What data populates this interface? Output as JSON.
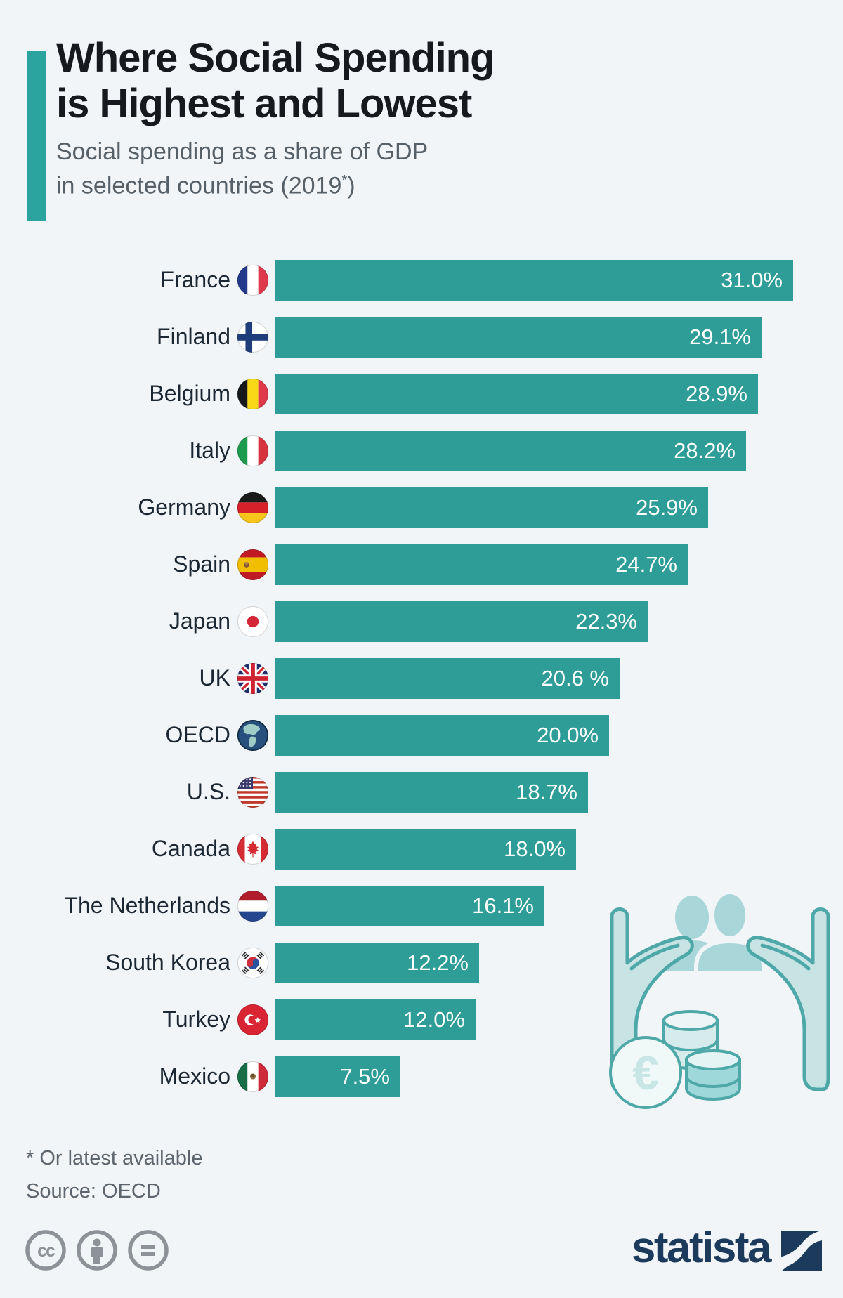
{
  "header": {
    "title_line1": "Where Social Spending",
    "title_line2": "is Highest and Lowest",
    "subtitle_line1": "Social spending as a share of GDP",
    "subtitle_line2_prefix": "in selected countries (2019",
    "subtitle_line2_sup": "*",
    "subtitle_line2_suffix": ")"
  },
  "chart_data": {
    "type": "bar",
    "orientation": "horizontal",
    "unit": "% of GDP",
    "title": "Social spending as a share of GDP in selected countries (2019)",
    "max_value": 31.0,
    "categories": [
      "France",
      "Finland",
      "Belgium",
      "Italy",
      "Germany",
      "Spain",
      "Japan",
      "UK",
      "OECD",
      "U.S.",
      "Canada",
      "The Netherlands",
      "South Korea",
      "Turkey",
      "Mexico"
    ],
    "values": [
      31.0,
      29.1,
      28.9,
      28.2,
      25.9,
      24.7,
      22.3,
      20.6,
      20.0,
      18.7,
      18.0,
      16.1,
      12.2,
      12.0,
      7.5
    ],
    "value_labels": [
      "31.0%",
      "29.1%",
      "28.9%",
      "28.2%",
      "25.9%",
      "24.7%",
      "22.3%",
      "20.6 %",
      "20.0%",
      "18.7%",
      "18.0%",
      "16.1%",
      "12.2%",
      "12.0%",
      "7.5%"
    ],
    "flags": [
      "france",
      "finland",
      "belgium",
      "italy",
      "germany",
      "spain",
      "japan",
      "uk",
      "oecd",
      "us",
      "canada",
      "netherlands",
      "southkorea",
      "turkey",
      "mexico"
    ],
    "legend": null,
    "grid": false
  },
  "footnote": {
    "line1": "* Or latest available",
    "line2": "Source: OECD"
  },
  "branding": {
    "logo_text": "statista",
    "license_icons": [
      "cc-icon",
      "attribution-person-icon",
      "no-derivatives-equals-icon"
    ]
  },
  "colors": {
    "background": "#F1F5F8",
    "accent": "#2BA39F",
    "bar": "#2E9C97",
    "title": "#16191D",
    "subtitle": "#566069",
    "label": "#1B2733",
    "value": "#FFFFFF",
    "footnote": "#5D666E",
    "license_gray": "#8D9298",
    "navy": "#1B3A5C"
  }
}
